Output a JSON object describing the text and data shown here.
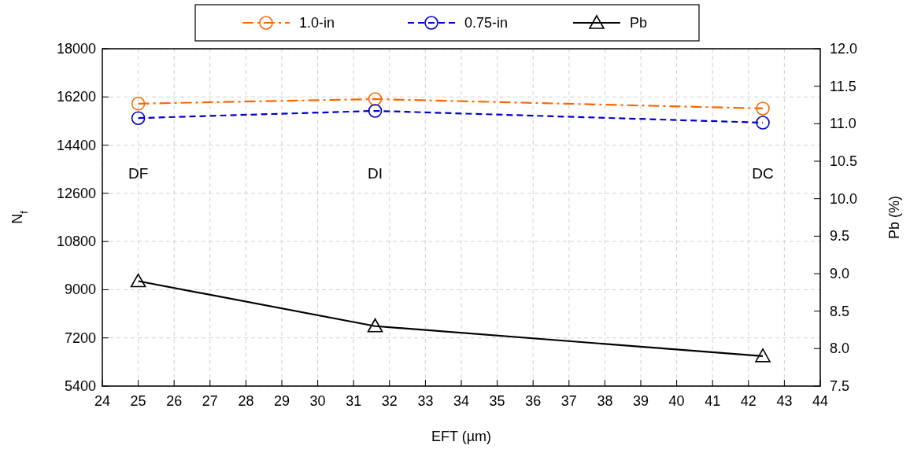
{
  "chart_data": {
    "type": "line",
    "xlabel": "EFT (µm)",
    "ylabel": "N$_{f}$",
    "y2label": "Pb (%)",
    "x": [
      25,
      31.6,
      42.4
    ],
    "series": [
      {
        "name": "1.0-in",
        "color": "#ff6600",
        "values": [
          15950,
          16120,
          15770
        ],
        "marker": "circle",
        "line_style": "dashdot"
      },
      {
        "name": "0.75-in",
        "color": "#0000cc",
        "values": [
          15410,
          15680,
          15240
        ],
        "marker": "circle",
        "line_style": "dashed"
      },
      {
        "name": "Pb",
        "color": "#000000",
        "values": [
          8.9,
          8.3,
          7.9
        ],
        "marker": "triangle",
        "line_style": "solid",
        "axis": "y2"
      }
    ],
    "xlim": [
      24,
      44
    ],
    "xticks": [
      24,
      25,
      26,
      27,
      28,
      29,
      30,
      31,
      32,
      33,
      34,
      35,
      36,
      37,
      38,
      39,
      40,
      41,
      42,
      43,
      44
    ],
    "ylim": [
      5400,
      18000
    ],
    "yticks": [
      5400,
      7200,
      9000,
      10800,
      12600,
      14400,
      16200,
      18000
    ],
    "y2lim": [
      7.5,
      12.0
    ],
    "y2ticks": [
      7.5,
      {
        "value": 8,
        "label": "8.0"
      },
      8.5,
      {
        "value": 9,
        "label": "9.0"
      },
      9.5,
      {
        "value": 10,
        "label": "10.0"
      },
      10.5,
      {
        "value": 11,
        "label": "11.0"
      },
      11.5,
      {
        "value": 12,
        "label": "12.0"
      }
    ],
    "annotations": [
      "DF",
      "DI",
      "DC"
    ],
    "grid": true,
    "legend": "top"
  }
}
